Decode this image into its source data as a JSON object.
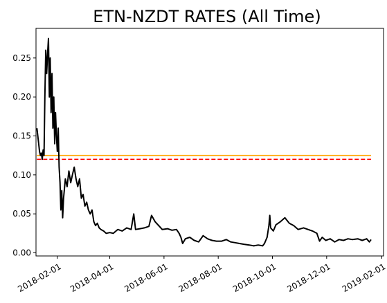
{
  "chart_data": {
    "type": "line",
    "title": "ETN-NZDT RATES (All Time)",
    "xlabel": "",
    "ylabel": "",
    "x_axis_type": "date",
    "xlim": [
      "2018-01-08",
      "2019-02-03"
    ],
    "ylim": [
      -0.004,
      0.288
    ],
    "grid": false,
    "legend": "none",
    "x_ticks": [
      "2018-02-01",
      "2018-04-01",
      "2018-06-01",
      "2018-08-01",
      "2018-10-01",
      "2018-12-01",
      "2019-02-01"
    ],
    "y_ticks": [
      0.0,
      0.05,
      0.1,
      0.15,
      0.2,
      0.25
    ],
    "y_tick_labels": [
      "0.00",
      "0.05",
      "0.10",
      "0.15",
      "0.20",
      "0.25"
    ],
    "series": [
      {
        "color": "#000000",
        "style": "solid",
        "points": [
          [
            "2018-01-09",
            0.16
          ],
          [
            "2018-01-10",
            0.15
          ],
          [
            "2018-01-11",
            0.14
          ],
          [
            "2018-01-12",
            0.13
          ],
          [
            "2018-01-13",
            0.125
          ],
          [
            "2018-01-14",
            0.128
          ],
          [
            "2018-01-15",
            0.12
          ],
          [
            "2018-01-16",
            0.132
          ],
          [
            "2018-01-17",
            0.125
          ],
          [
            "2018-01-18",
            0.2
          ],
          [
            "2018-01-19",
            0.26
          ],
          [
            "2018-01-20",
            0.23
          ],
          [
            "2018-01-21",
            0.255
          ],
          [
            "2018-01-22",
            0.275
          ],
          [
            "2018-01-23",
            0.2
          ],
          [
            "2018-01-24",
            0.25
          ],
          [
            "2018-01-25",
            0.18
          ],
          [
            "2018-01-26",
            0.23
          ],
          [
            "2018-01-27",
            0.16
          ],
          [
            "2018-01-28",
            0.2
          ],
          [
            "2018-01-29",
            0.14
          ],
          [
            "2018-01-30",
            0.18
          ],
          [
            "2018-01-31",
            0.15
          ],
          [
            "2018-02-01",
            0.13
          ],
          [
            "2018-02-02",
            0.16
          ],
          [
            "2018-02-03",
            0.11
          ],
          [
            "2018-02-04",
            0.09
          ],
          [
            "2018-02-05",
            0.055
          ],
          [
            "2018-02-06",
            0.08
          ],
          [
            "2018-02-07",
            0.045
          ],
          [
            "2018-02-08",
            0.07
          ],
          [
            "2018-02-10",
            0.095
          ],
          [
            "2018-02-12",
            0.085
          ],
          [
            "2018-02-14",
            0.105
          ],
          [
            "2018-02-16",
            0.09
          ],
          [
            "2018-02-18",
            0.1
          ],
          [
            "2018-02-20",
            0.11
          ],
          [
            "2018-02-22",
            0.095
          ],
          [
            "2018-02-24",
            0.085
          ],
          [
            "2018-02-26",
            0.095
          ],
          [
            "2018-02-28",
            0.07
          ],
          [
            "2018-03-02",
            0.075
          ],
          [
            "2018-03-04",
            0.06
          ],
          [
            "2018-03-06",
            0.065
          ],
          [
            "2018-03-08",
            0.055
          ],
          [
            "2018-03-10",
            0.05
          ],
          [
            "2018-03-12",
            0.055
          ],
          [
            "2018-03-14",
            0.04
          ],
          [
            "2018-03-16",
            0.035
          ],
          [
            "2018-03-18",
            0.038
          ],
          [
            "2018-03-20",
            0.032
          ],
          [
            "2018-03-22",
            0.03
          ],
          [
            "2018-03-25",
            0.028
          ],
          [
            "2018-03-28",
            0.025
          ],
          [
            "2018-04-01",
            0.026
          ],
          [
            "2018-04-05",
            0.025
          ],
          [
            "2018-04-10",
            0.03
          ],
          [
            "2018-04-15",
            0.028
          ],
          [
            "2018-04-20",
            0.032
          ],
          [
            "2018-04-25",
            0.03
          ],
          [
            "2018-04-28",
            0.05
          ],
          [
            "2018-04-30",
            0.03
          ],
          [
            "2018-05-05",
            0.031
          ],
          [
            "2018-05-10",
            0.032
          ],
          [
            "2018-05-15",
            0.034
          ],
          [
            "2018-05-18",
            0.048
          ],
          [
            "2018-05-22",
            0.04
          ],
          [
            "2018-05-26",
            0.035
          ],
          [
            "2018-05-30",
            0.03
          ],
          [
            "2018-06-05",
            0.031
          ],
          [
            "2018-06-10",
            0.029
          ],
          [
            "2018-06-15",
            0.03
          ],
          [
            "2018-06-18",
            0.025
          ],
          [
            "2018-06-20",
            0.02
          ],
          [
            "2018-06-22",
            0.012
          ],
          [
            "2018-06-25",
            0.018
          ],
          [
            "2018-06-30",
            0.02
          ],
          [
            "2018-07-05",
            0.016
          ],
          [
            "2018-07-10",
            0.014
          ],
          [
            "2018-07-15",
            0.022
          ],
          [
            "2018-07-20",
            0.018
          ],
          [
            "2018-07-25",
            0.016
          ],
          [
            "2018-07-30",
            0.015
          ],
          [
            "2018-08-05",
            0.015
          ],
          [
            "2018-08-10",
            0.017
          ],
          [
            "2018-08-15",
            0.014
          ],
          [
            "2018-08-20",
            0.013
          ],
          [
            "2018-08-25",
            0.012
          ],
          [
            "2018-08-30",
            0.011
          ],
          [
            "2018-09-05",
            0.01
          ],
          [
            "2018-09-10",
            0.009
          ],
          [
            "2018-09-15",
            0.01
          ],
          [
            "2018-09-20",
            0.009
          ],
          [
            "2018-09-22",
            0.012
          ],
          [
            "2018-09-25",
            0.02
          ],
          [
            "2018-09-27",
            0.035
          ],
          [
            "2018-09-28",
            0.048
          ],
          [
            "2018-09-29",
            0.032
          ],
          [
            "2018-10-02",
            0.028
          ],
          [
            "2018-10-05",
            0.036
          ],
          [
            "2018-10-10",
            0.04
          ],
          [
            "2018-10-15",
            0.045
          ],
          [
            "2018-10-20",
            0.038
          ],
          [
            "2018-10-25",
            0.035
          ],
          [
            "2018-10-30",
            0.03
          ],
          [
            "2018-11-05",
            0.032
          ],
          [
            "2018-11-10",
            0.03
          ],
          [
            "2018-11-15",
            0.028
          ],
          [
            "2018-11-20",
            0.025
          ],
          [
            "2018-11-23",
            0.015
          ],
          [
            "2018-11-26",
            0.02
          ],
          [
            "2018-11-30",
            0.016
          ],
          [
            "2018-12-05",
            0.018
          ],
          [
            "2018-12-10",
            0.014
          ],
          [
            "2018-12-15",
            0.017
          ],
          [
            "2018-12-20",
            0.016
          ],
          [
            "2018-12-25",
            0.018
          ],
          [
            "2018-12-30",
            0.017
          ],
          [
            "2019-01-05",
            0.018
          ],
          [
            "2019-01-10",
            0.016
          ],
          [
            "2019-01-15",
            0.018
          ],
          [
            "2019-01-18",
            0.014
          ],
          [
            "2019-01-20",
            0.017
          ]
        ]
      },
      {
        "color": "#ff0000",
        "style": "dashed",
        "points": [
          [
            "2018-01-09",
            0.12
          ],
          [
            "2019-01-20",
            0.12
          ]
        ]
      },
      {
        "color": "#ffa500",
        "style": "solid",
        "points": [
          [
            "2018-01-09",
            0.125
          ],
          [
            "2019-01-20",
            0.125
          ]
        ]
      }
    ]
  }
}
